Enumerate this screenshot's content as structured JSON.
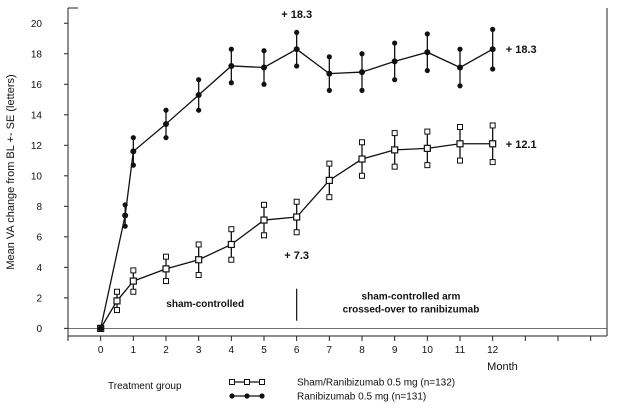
{
  "chart_data": {
    "type": "line",
    "xlabel": "Month",
    "ylabel": "Mean VA change from BL +- SE (letters)",
    "xlim": [
      -1,
      15.5
    ],
    "ylim": [
      -0.5,
      21
    ],
    "x_ticks": [
      0,
      1,
      2,
      3,
      4,
      5,
      6,
      7,
      8,
      9,
      10,
      11,
      12
    ],
    "y_ticks": [
      0,
      2,
      4,
      6,
      8,
      10,
      12,
      14,
      16,
      18,
      20
    ],
    "grid": false,
    "legend_title": "Treatment group",
    "legend_position": "bottom",
    "series": [
      {
        "name": "Sham/Ranibizumab 0.5 mg (n=132)",
        "marker": "square",
        "x": [
          0,
          0.5,
          1,
          2,
          3,
          4,
          5,
          6,
          7,
          8,
          9,
          10,
          11,
          12
        ],
        "y": [
          0,
          1.8,
          3.1,
          3.9,
          4.5,
          5.5,
          7.1,
          7.3,
          9.7,
          11.1,
          11.7,
          11.8,
          12.1,
          12.1
        ],
        "se": [
          0,
          0.6,
          0.7,
          0.8,
          1.0,
          1.0,
          1.0,
          1.0,
          1.1,
          1.1,
          1.1,
          1.1,
          1.1,
          1.2
        ]
      },
      {
        "name": "Ranibizumab 0.5 mg (n=131)",
        "marker": "circle",
        "x": [
          0,
          0.75,
          1,
          2,
          3,
          4,
          5,
          6,
          7,
          8,
          9,
          10,
          11,
          12
        ],
        "y": [
          0,
          7.4,
          11.6,
          13.4,
          15.3,
          17.2,
          17.1,
          18.3,
          16.7,
          16.8,
          17.5,
          18.1,
          17.1,
          18.3
        ],
        "se": [
          0,
          0.7,
          0.9,
          0.9,
          1.0,
          1.1,
          1.1,
          1.1,
          1.1,
          1.2,
          1.2,
          1.2,
          1.2,
          1.3
        ]
      }
    ],
    "annotations": [
      {
        "text": "+ 18.3",
        "x": 6,
        "y": 20.6,
        "anchor": "middle"
      },
      {
        "text": "+ 18.3",
        "x": 12.4,
        "y": 18.3,
        "anchor": "start"
      },
      {
        "text": "+ 12.1",
        "x": 12.4,
        "y": 12.1,
        "anchor": "start"
      },
      {
        "text": "+ 7.3",
        "x": 6,
        "y": 4.8,
        "anchor": "middle"
      }
    ],
    "divider": {
      "x": 6,
      "y_from": 0.5,
      "y_to": 2.6
    },
    "regions": [
      {
        "lines": [
          "sham-controlled"
        ],
        "x": 3.2,
        "y": 1.4
      },
      {
        "lines": [
          "sham-controlled arm",
          "crossed-over to ranibizumab"
        ],
        "x": 9.5,
        "y": 1.9
      }
    ]
  }
}
